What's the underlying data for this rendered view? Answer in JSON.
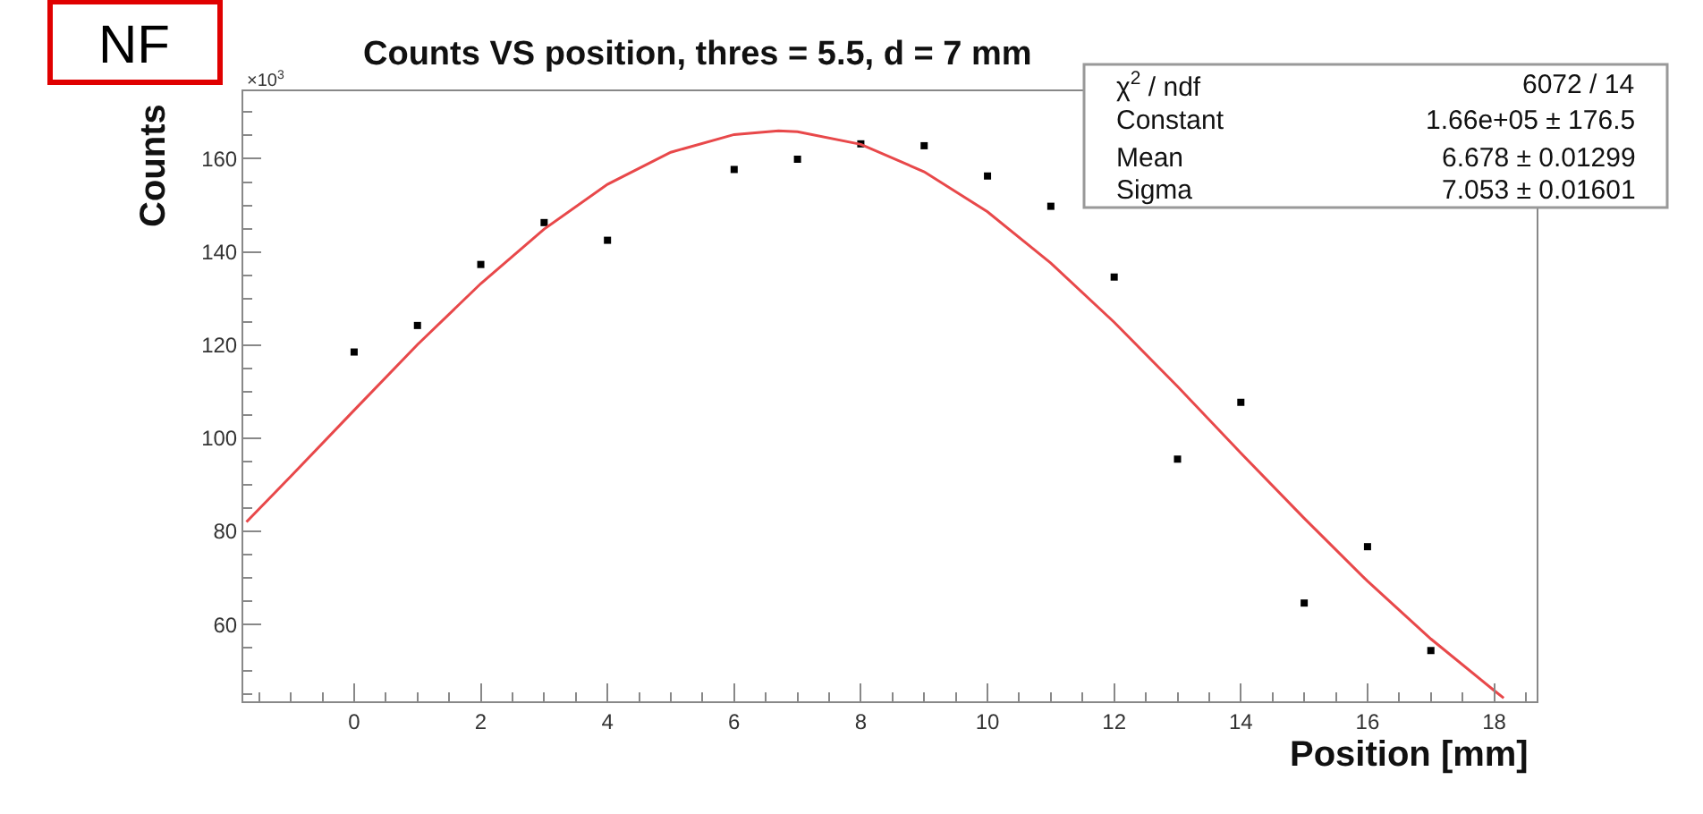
{
  "chart_data": {
    "type": "scatter",
    "title": "Counts VS position, thres = 5.5, d = 7 mm",
    "xlabel": "Position [mm]",
    "ylabel": "Counts",
    "annotations": [
      "NF",
      "×10$^{3}$",
      "χ$^{2}$ / ndf",
      "6072 / 14",
      "Constant",
      "1.66e+05 ± 176.5",
      "Mean",
      "6.678 ± 0.01299",
      "Sigma",
      "7.053 ± 0.01601"
    ],
    "series": [
      {
        "color": "#000000",
        "x": [
          0,
          1,
          2,
          3,
          4,
          6,
          7,
          8,
          9,
          10,
          11,
          12,
          13,
          14,
          15,
          16,
          17
        ],
        "values": [
          118.5,
          124.2,
          137.3,
          146.3,
          142.5,
          157.7,
          159.9,
          163.2,
          162.8,
          156.3,
          149.8,
          134.6,
          95.5,
          107.7,
          64.6,
          76.7,
          54.4
        ]
      },
      {
        "type": "line",
        "color": "#e8484a",
        "marker": "none",
        "x": [
          -1.7,
          -1,
          0,
          1,
          2,
          3,
          4,
          5,
          6,
          6.7,
          7,
          8,
          9,
          10,
          11,
          12,
          13,
          14,
          15,
          16,
          17,
          18,
          18.15
        ],
        "values": [
          82,
          91.8,
          106,
          120.1,
          133.2,
          144.9,
          154.5,
          161.4,
          165.2,
          166,
          165.8,
          163.1,
          157.2,
          148.6,
          137.6,
          124.9,
          111.1,
          96.8,
          82.8,
          69.3,
          56.9,
          45.8,
          44.2
        ]
      }
    ],
    "marker": "square",
    "xlim": [
      -1.75,
      18.67
    ],
    "ylim": [
      43.5,
      174.5
    ],
    "xticks": [
      0,
      2,
      4,
      6,
      8,
      10,
      12,
      14,
      16,
      18
    ],
    "yticks": [
      60,
      80,
      100,
      120,
      140,
      160
    ]
  }
}
